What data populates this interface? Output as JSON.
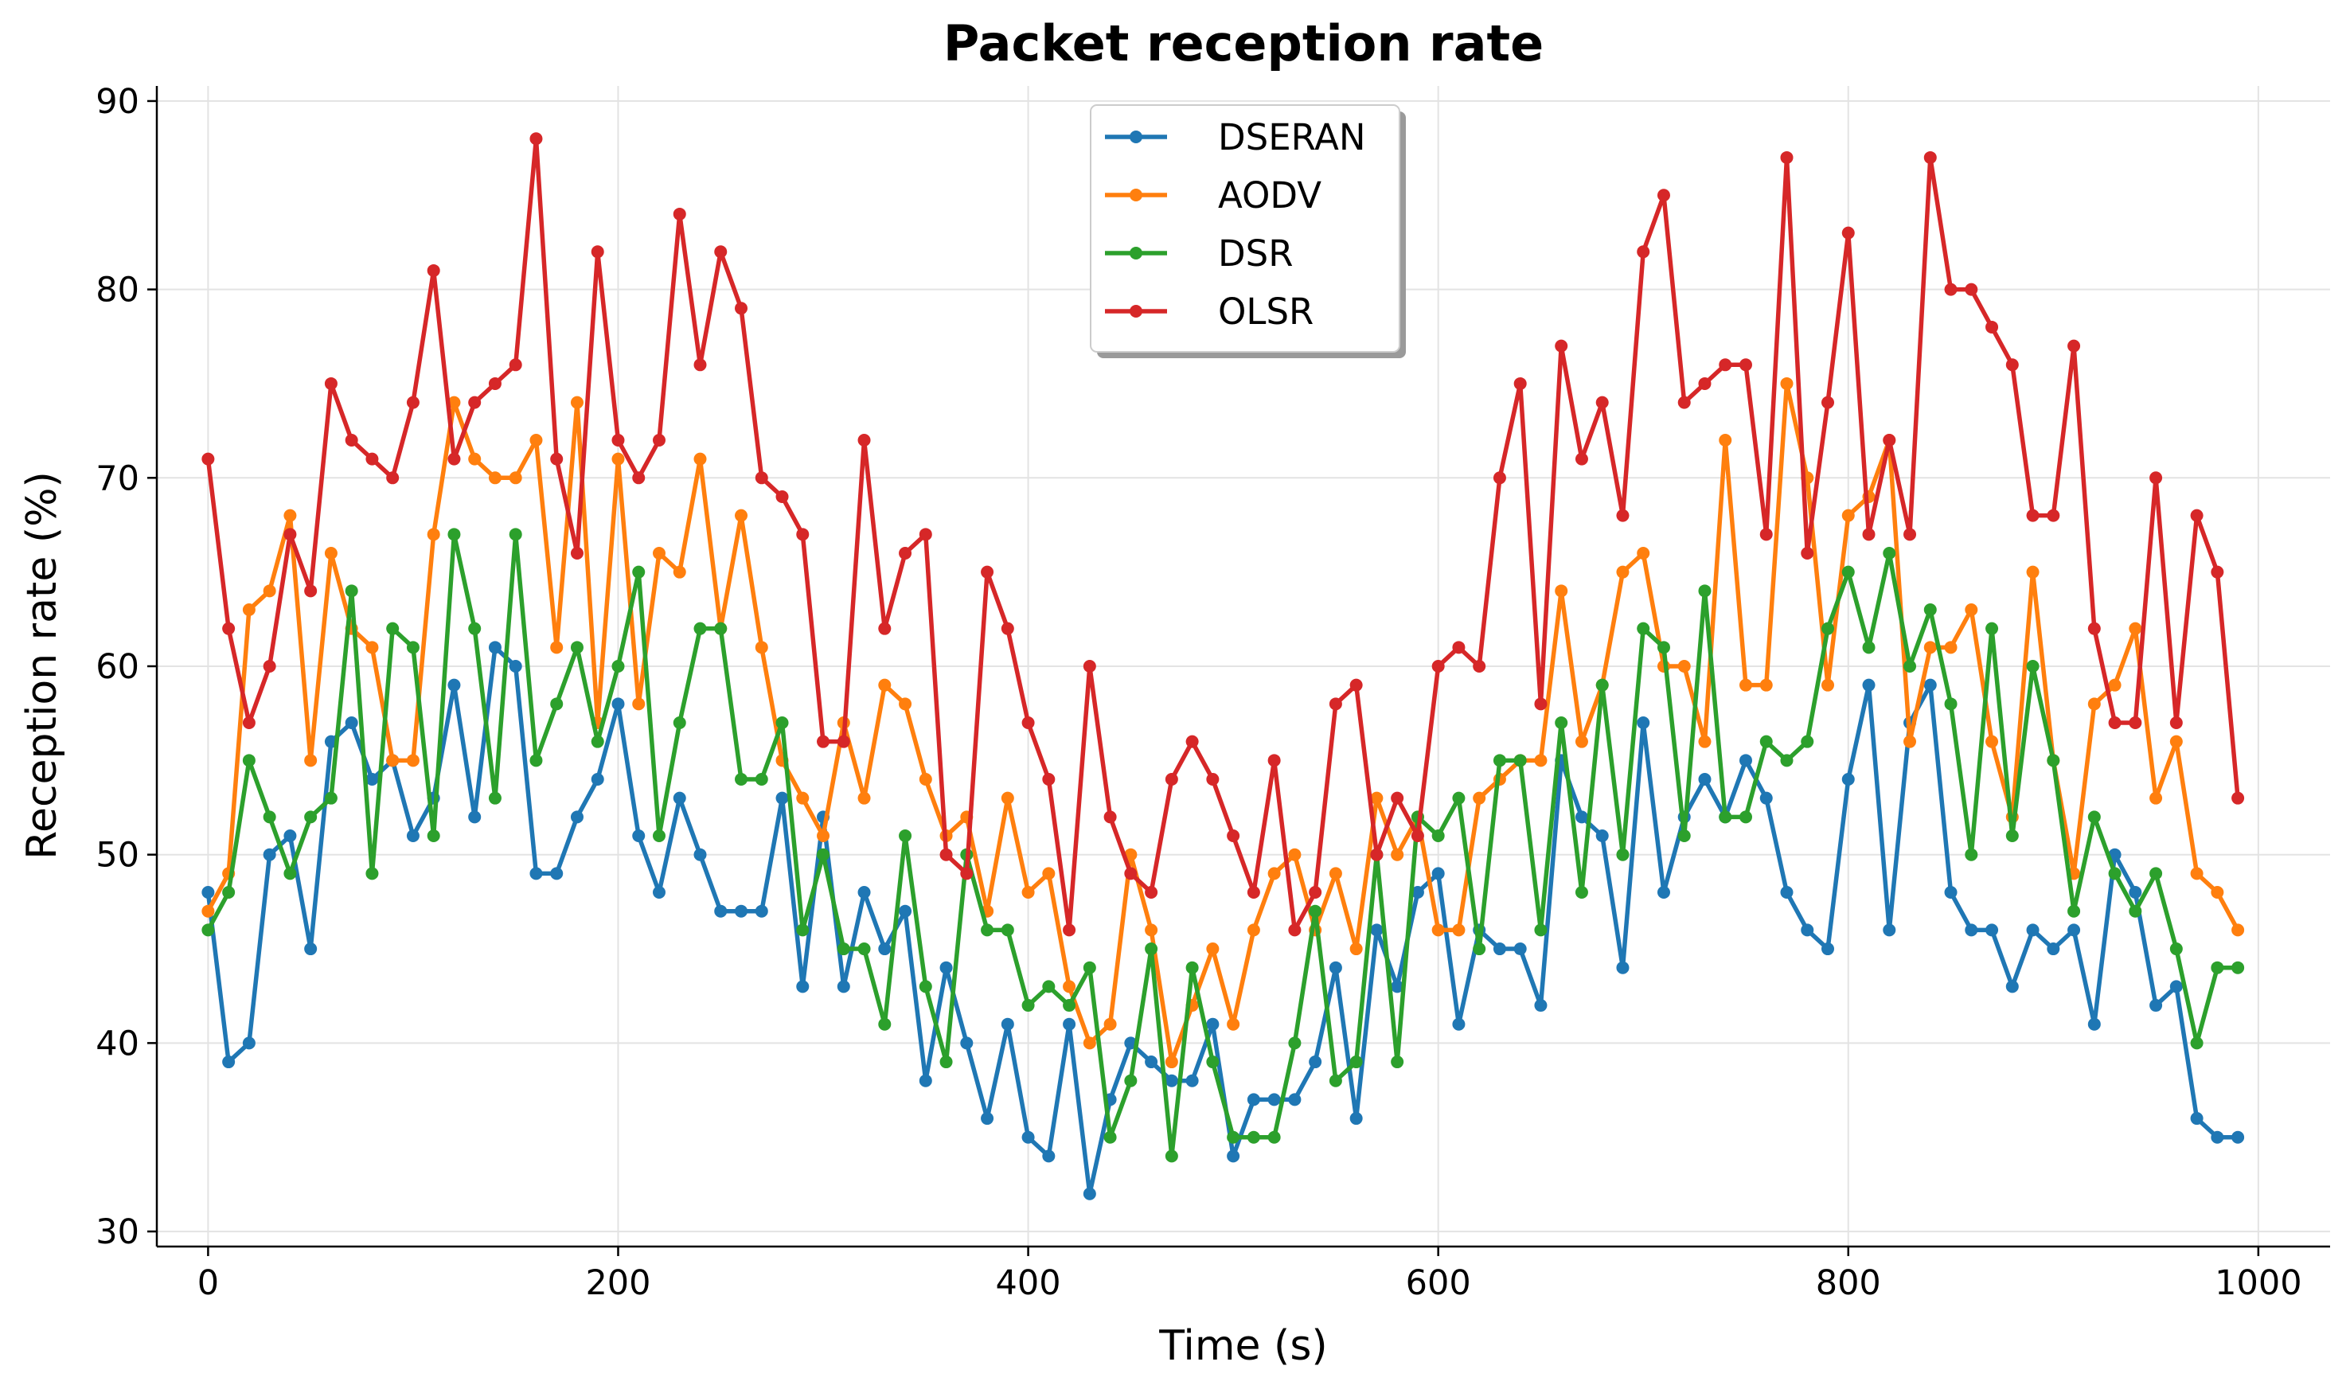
{
  "chart_data": {
    "type": "line",
    "title": "Packet reception rate",
    "xlabel": "Time (s)",
    "ylabel": "Reception rate (%)",
    "xlim": [
      -25,
      1035
    ],
    "ylim": [
      29.2,
      90.8
    ],
    "xticks": [
      0,
      200,
      400,
      600,
      800,
      1000
    ],
    "yticks": [
      30,
      40,
      50,
      60,
      70,
      80,
      90
    ],
    "grid": true,
    "legend_position": "top-center",
    "x": [
      0,
      10,
      20,
      30,
      40,
      50,
      60,
      70,
      80,
      90,
      100,
      110,
      120,
      130,
      140,
      150,
      160,
      170,
      180,
      190,
      200,
      210,
      220,
      230,
      240,
      250,
      260,
      270,
      280,
      290,
      300,
      310,
      320,
      330,
      340,
      350,
      360,
      370,
      380,
      390,
      400,
      410,
      420,
      430,
      440,
      450,
      460,
      470,
      480,
      490,
      500,
      510,
      520,
      530,
      540,
      550,
      560,
      570,
      580,
      590,
      600,
      610,
      620,
      630,
      640,
      650,
      660,
      670,
      680,
      690,
      700,
      710,
      720,
      730,
      740,
      750,
      760,
      770,
      780,
      790,
      800,
      810,
      820,
      830,
      840,
      850,
      860,
      870,
      880,
      890,
      900,
      910,
      920,
      930,
      940,
      950,
      960,
      970,
      980,
      990
    ],
    "series": [
      {
        "name": "DSERAN",
        "color": "#1f77b4",
        "values": [
          48,
          39,
          40,
          50,
          51,
          45,
          56,
          57,
          54,
          55,
          51,
          53,
          59,
          52,
          61,
          60,
          49,
          49,
          52,
          54,
          58,
          51,
          48,
          53,
          50,
          47,
          47,
          47,
          53,
          43,
          52,
          43,
          48,
          45,
          47,
          38,
          44,
          40,
          36,
          41,
          35,
          34,
          41,
          32,
          37,
          40,
          39,
          38,
          38,
          41,
          34,
          37,
          37,
          37,
          39,
          44,
          36,
          46,
          43,
          48,
          49,
          41,
          46,
          45,
          45,
          42,
          55,
          52,
          51,
          44,
          57,
          48,
          52,
          54,
          52,
          55,
          53,
          48,
          46,
          45,
          54,
          59,
          46,
          57,
          59,
          48,
          46,
          46,
          43,
          46,
          45,
          46,
          41,
          50,
          48,
          42,
          43,
          36,
          35,
          35
        ]
      },
      {
        "name": "AODV",
        "color": "#ff7f0e",
        "values": [
          47,
          49,
          63,
          64,
          68,
          55,
          66,
          62,
          61,
          55,
          55,
          67,
          74,
          71,
          70,
          70,
          72,
          61,
          74,
          57,
          71,
          58,
          66,
          65,
          71,
          62,
          68,
          61,
          55,
          53,
          51,
          57,
          53,
          59,
          58,
          54,
          51,
          52,
          47,
          53,
          48,
          49,
          43,
          40,
          41,
          50,
          46,
          39,
          42,
          45,
          41,
          46,
          49,
          50,
          46,
          49,
          45,
          53,
          50,
          52,
          46,
          46,
          53,
          54,
          55,
          55,
          64,
          56,
          59,
          65,
          66,
          60,
          60,
          56,
          72,
          59,
          59,
          75,
          70,
          59,
          68,
          69,
          72,
          56,
          61,
          61,
          63,
          56,
          52,
          65,
          55,
          49,
          58,
          59,
          62,
          53,
          56,
          49,
          48,
          46
        ]
      },
      {
        "name": "DSR",
        "color": "#2ca02c",
        "values": [
          46,
          48,
          55,
          52,
          49,
          52,
          53,
          64,
          49,
          62,
          61,
          51,
          67,
          62,
          53,
          67,
          55,
          58,
          61,
          56,
          60,
          65,
          51,
          57,
          62,
          62,
          54,
          54,
          57,
          46,
          50,
          45,
          45,
          41,
          51,
          43,
          39,
          50,
          46,
          46,
          42,
          43,
          42,
          44,
          35,
          38,
          45,
          34,
          44,
          39,
          35,
          35,
          35,
          40,
          47,
          38,
          39,
          50,
          39,
          52,
          51,
          53,
          45,
          55,
          55,
          46,
          57,
          48,
          59,
          50,
          62,
          61,
          51,
          64,
          52,
          52,
          56,
          55,
          56,
          62,
          65,
          61,
          66,
          60,
          63,
          58,
          50,
          62,
          51,
          60,
          55,
          47,
          52,
          49,
          47,
          49,
          45,
          40,
          44,
          44
        ]
      },
      {
        "name": "OLSR",
        "color": "#d62728",
        "values": [
          71,
          62,
          57,
          60,
          67,
          64,
          75,
          72,
          71,
          70,
          74,
          81,
          71,
          74,
          75,
          76,
          88,
          71,
          66,
          82,
          72,
          70,
          72,
          84,
          76,
          82,
          79,
          70,
          69,
          67,
          56,
          56,
          72,
          62,
          66,
          67,
          50,
          49,
          65,
          62,
          57,
          54,
          46,
          60,
          52,
          49,
          48,
          54,
          56,
          54,
          51,
          48,
          55,
          46,
          48,
          58,
          59,
          50,
          53,
          51,
          60,
          61,
          60,
          70,
          75,
          58,
          77,
          71,
          74,
          68,
          82,
          85,
          74,
          75,
          76,
          76,
          67,
          87,
          66,
          74,
          83,
          67,
          72,
          67,
          87,
          80,
          80,
          78,
          76,
          68,
          68,
          77,
          62,
          57,
          57,
          70,
          57,
          68,
          65,
          53
        ]
      }
    ]
  }
}
